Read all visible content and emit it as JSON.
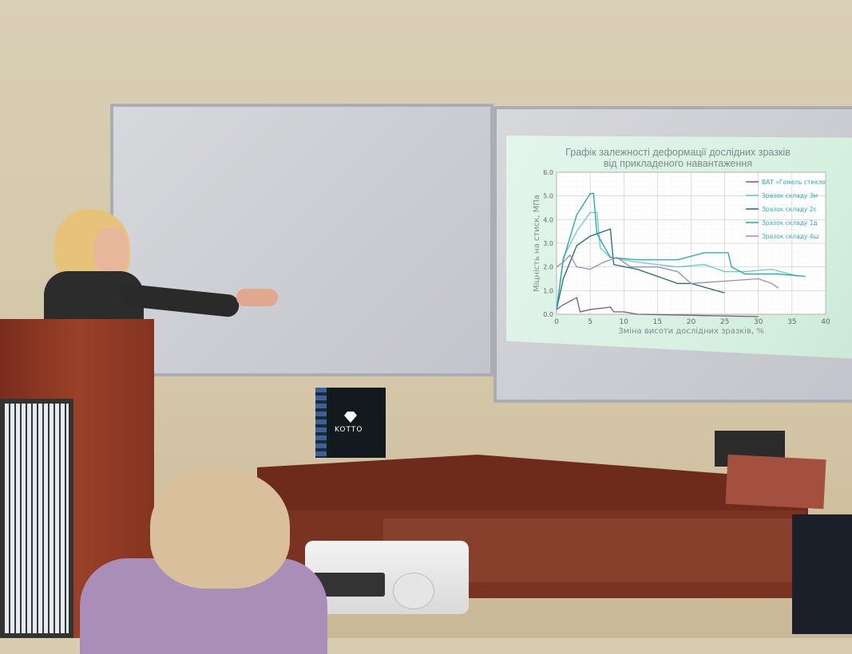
{
  "scene": {
    "description_labels": {
      "box_brand": "KOTTO"
    }
  },
  "slide": {
    "title_line1": "Графік залежності деформації дослідних зразків",
    "title_line2": "від прикладеного навантаження",
    "ylabel": "Міцність на стиск, МПа",
    "xlabel": "Зміна висоти дослідних зразків, %",
    "x_ticks": [
      "0",
      "5",
      "10",
      "15",
      "20",
      "25",
      "30",
      "35",
      "40"
    ],
    "y_ticks": [
      "0.0",
      "1.0",
      "2.0",
      "3.0",
      "4.0",
      "5.0",
      "6.0"
    ],
    "xlim": [
      0,
      40
    ],
    "ylim": [
      0,
      6
    ],
    "series": [
      {
        "name": "ВАТ «Гомель стекло",
        "color": "#7a5a78",
        "points": [
          [
            0,
            0.2
          ],
          [
            1,
            0.4
          ],
          [
            3,
            0.7
          ],
          [
            3.5,
            0.1
          ],
          [
            5,
            0.2
          ],
          [
            8,
            0.3
          ],
          [
            8.5,
            0.1
          ],
          [
            10,
            0.1
          ],
          [
            12,
            0
          ],
          [
            30,
            -0.1
          ]
        ]
      },
      {
        "name": "Зразок складу 3м",
        "color": "#6cc9c4",
        "points": [
          [
            0,
            0.2
          ],
          [
            1,
            2.4
          ],
          [
            3,
            3.5
          ],
          [
            5,
            4.3
          ],
          [
            6,
            4.3
          ],
          [
            6.5,
            2.8
          ],
          [
            8,
            2.4
          ],
          [
            12,
            2.2
          ],
          [
            18,
            2.0
          ],
          [
            22,
            2.1
          ],
          [
            25,
            1.8
          ],
          [
            28,
            1.8
          ],
          [
            32,
            1.9
          ],
          [
            36,
            1.6
          ]
        ]
      },
      {
        "name": "Зразок складу 2с",
        "color": "#1f6e6e",
        "points": [
          [
            0,
            0.2
          ],
          [
            1,
            1.5
          ],
          [
            3,
            2.9
          ],
          [
            5,
            3.3
          ],
          [
            6,
            3.4
          ],
          [
            7,
            3.5
          ],
          [
            8,
            3.6
          ],
          [
            8.5,
            2.1
          ],
          [
            12,
            1.9
          ],
          [
            15,
            1.6
          ],
          [
            18,
            1.3
          ],
          [
            20,
            1.3
          ],
          [
            25,
            0.9
          ]
        ]
      },
      {
        "name": "Зразок складу 1д",
        "color": "#1fa7a7",
        "points": [
          [
            0,
            0.2
          ],
          [
            1,
            2.3
          ],
          [
            3,
            4.2
          ],
          [
            5,
            5.1
          ],
          [
            5.5,
            5.1
          ],
          [
            6,
            3.4
          ],
          [
            8,
            2.4
          ],
          [
            12,
            2.3
          ],
          [
            18,
            2.3
          ],
          [
            22,
            2.6
          ],
          [
            25.5,
            2.6
          ],
          [
            26,
            2.0
          ],
          [
            28,
            1.7
          ],
          [
            33,
            1.7
          ],
          [
            37,
            1.6
          ]
        ]
      },
      {
        "name": "Зразок складу 4ш",
        "color": "#a08aa8",
        "points": [
          [
            0,
            2.0
          ],
          [
            1,
            2.2
          ],
          [
            2,
            2.5
          ],
          [
            3,
            2.0
          ],
          [
            5,
            1.9
          ],
          [
            7,
            2.2
          ],
          [
            9,
            2.4
          ],
          [
            11,
            2.0
          ],
          [
            15,
            2.0
          ],
          [
            18,
            1.8
          ],
          [
            20,
            1.3
          ],
          [
            25,
            1.4
          ],
          [
            30,
            1.5
          ],
          [
            32,
            1.3
          ],
          [
            33,
            1.1
          ]
        ]
      }
    ]
  }
}
